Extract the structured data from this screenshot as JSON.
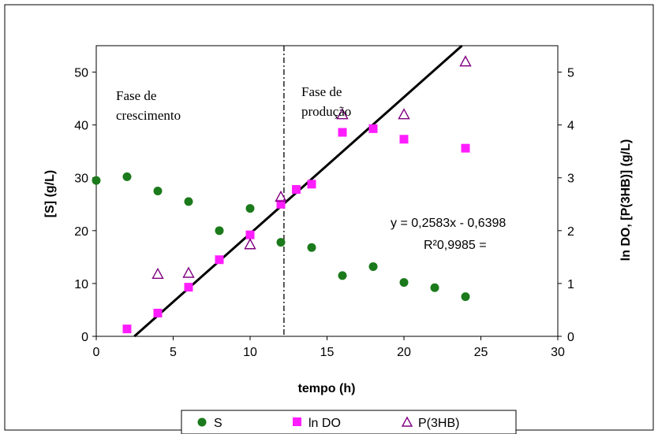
{
  "chart_data": {
    "type": "scatter",
    "title": "",
    "xlabel": "tempo (h)",
    "ylabel_left": "[S] (g/L)",
    "ylabel_right": "ln DO, [P(3HB)] (g/L)",
    "xlim": [
      0,
      30
    ],
    "ylim_left": [
      0,
      55
    ],
    "ylim_right": [
      0,
      5.5
    ],
    "x_ticks": [
      "0",
      "5",
      "10",
      "15",
      "20",
      "25",
      "30"
    ],
    "y_left_ticks": [
      "0",
      "10",
      "20",
      "30",
      "40",
      "50"
    ],
    "y_right_ticks": [
      "0",
      "1",
      "2",
      "3",
      "4",
      "5"
    ],
    "grid": false,
    "legend_position": "bottom",
    "series": [
      {
        "name": "S",
        "axis": "left",
        "marker": "circle",
        "color": "#1b7a1b",
        "points": [
          [
            0,
            29.5
          ],
          [
            2,
            30.2
          ],
          [
            4,
            27.5
          ],
          [
            6,
            25.5
          ],
          [
            8,
            20.0
          ],
          [
            10,
            24.2
          ],
          [
            12,
            17.8
          ],
          [
            14,
            16.8
          ],
          [
            16,
            11.5
          ],
          [
            18,
            13.2
          ],
          [
            20,
            10.2
          ],
          [
            22,
            9.2
          ],
          [
            24,
            7.5
          ]
        ]
      },
      {
        "name": "ln DO",
        "axis": "right",
        "marker": "square",
        "color": "#ff1dff",
        "points": [
          [
            2,
            0.14
          ],
          [
            4,
            0.44
          ],
          [
            6,
            0.93
          ],
          [
            8,
            1.45
          ],
          [
            10,
            1.92
          ],
          [
            12,
            2.5
          ],
          [
            13,
            2.78
          ],
          [
            14,
            2.88
          ],
          [
            16,
            3.86
          ],
          [
            18,
            3.93
          ],
          [
            20,
            3.73
          ],
          [
            24,
            3.56
          ]
        ]
      },
      {
        "name": "P(3HB)",
        "axis": "right",
        "marker": "triangle",
        "color": "#800080",
        "points": [
          [
            4,
            1.18
          ],
          [
            6,
            1.2
          ],
          [
            10,
            1.74
          ],
          [
            12,
            2.64
          ],
          [
            16,
            4.2
          ],
          [
            20,
            4.2
          ],
          [
            24,
            5.2
          ]
        ]
      }
    ],
    "trendline": {
      "slope": 0.2583,
      "intercept": -0.6398,
      "axis": "right",
      "equation_label": "y = 0,2583x - 0,6398",
      "r2_label": "R²0,9985 ="
    },
    "phase_divider_x": 12.2,
    "annotations": {
      "growth_phase": [
        "Fase de",
        "crescimento"
      ],
      "production_phase": [
        "Fase de",
        "produção"
      ]
    }
  },
  "colors": {
    "s_series": "#1b7a1b",
    "ln_do_series": "#ff1dff",
    "p3hb_series": "#800080",
    "trendline": "#000000"
  }
}
